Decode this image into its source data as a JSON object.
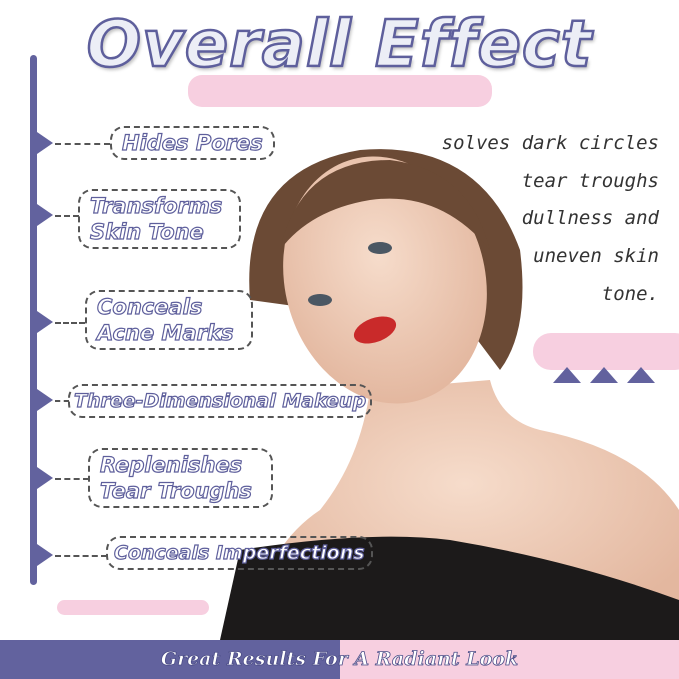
{
  "title": "Overall Effect",
  "features": [
    "Hides Pores",
    "Transforms Skin Tone",
    "Conceals Acne Marks",
    "Three-Dimensional Makeup",
    "Replenishes Tear Troughs",
    "Conceals Imperfections"
  ],
  "benefits_lines": [
    "solves dark circles",
    "tear troughs",
    "dullness and",
    "uneven skin",
    "tone."
  ],
  "tagline": "Great Results For A Radiant Look",
  "colors": {
    "accent": "#62629e",
    "pink": "#f7cfe0"
  }
}
